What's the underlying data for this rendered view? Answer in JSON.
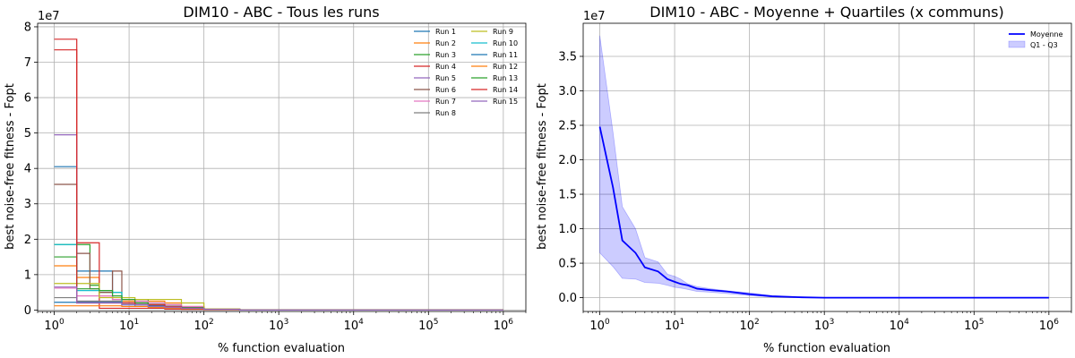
{
  "chart_data": [
    {
      "type": "line",
      "title": "DIM10 - ABC - Tous les runs",
      "xlabel": "% function evaluation",
      "ylabel": "best noise-free fitness - Fopt",
      "y_multiplier": "1e7",
      "xscale": "log",
      "xlim": [
        0.6,
        2000000
      ],
      "ylim": [
        -400000,
        81000000
      ],
      "xticks": [
        {
          "v": 1,
          "b": "10",
          "e": "0"
        },
        {
          "v": 10,
          "b": "10",
          "e": "1"
        },
        {
          "v": 100,
          "b": "10",
          "e": "2"
        },
        {
          "v": 1000,
          "b": "10",
          "e": "3"
        },
        {
          "v": 10000,
          "b": "10",
          "e": "4"
        },
        {
          "v": 100000,
          "b": "10",
          "e": "5"
        },
        {
          "v": 1000000,
          "b": "10",
          "e": "6"
        }
      ],
      "yticks": [
        {
          "v": 0,
          "l": "0"
        },
        {
          "v": 10000000,
          "l": "1"
        },
        {
          "v": 20000000,
          "l": "2"
        },
        {
          "v": 30000000,
          "l": "3"
        },
        {
          "v": 40000000,
          "l": "4"
        },
        {
          "v": 50000000,
          "l": "5"
        },
        {
          "v": 60000000,
          "l": "6"
        },
        {
          "v": 70000000,
          "l": "7"
        },
        {
          "v": 80000000,
          "l": "8"
        }
      ],
      "grid": true,
      "legend": "top-right",
      "x": [
        1,
        2,
        3,
        4,
        6,
        8,
        12,
        18,
        30,
        50,
        100,
        300,
        1000,
        10000,
        100000,
        1000000
      ],
      "series": [
        {
          "name": "Run 1",
          "color": "#1f77b4",
          "values": [
            40500000,
            11000000,
            11000000,
            11000000,
            3000000,
            2000000,
            2000000,
            1500000,
            1000000,
            800000,
            300000,
            0,
            0,
            0,
            0,
            0
          ]
        },
        {
          "name": "Run 2",
          "color": "#ff7f0e",
          "values": [
            12500000,
            9200000,
            9200000,
            4000000,
            3000000,
            2500000,
            2500000,
            2500000,
            2000000,
            1000000,
            300000,
            0,
            0,
            0,
            0,
            0
          ]
        },
        {
          "name": "Run 3",
          "color": "#2ca02c",
          "values": [
            18500000,
            18500000,
            7000000,
            5000000,
            5000000,
            3000000,
            3000000,
            2000000,
            1500000,
            800000,
            300000,
            0,
            0,
            0,
            0,
            0
          ]
        },
        {
          "name": "Run 4",
          "color": "#d62728",
          "values": [
            73500000,
            19000000,
            19000000,
            500000,
            500000,
            500000,
            500000,
            500000,
            300000,
            200000,
            100000,
            0,
            0,
            0,
            0,
            0
          ]
        },
        {
          "name": "Run 5",
          "color": "#9467bd",
          "values": [
            49500000,
            2500000,
            2500000,
            2500000,
            2500000,
            2000000,
            1500000,
            1000000,
            800000,
            500000,
            200000,
            0,
            0,
            0,
            0,
            0
          ]
        },
        {
          "name": "Run 6",
          "color": "#8c564b",
          "values": [
            35500000,
            16000000,
            6000000,
            5000000,
            11000000,
            3000000,
            2000000,
            1500000,
            1000000,
            600000,
            200000,
            0,
            0,
            0,
            0,
            0
          ]
        },
        {
          "name": "Run 7",
          "color": "#e377c2",
          "values": [
            6200000,
            4000000,
            4000000,
            4000000,
            3000000,
            3000000,
            2500000,
            2000000,
            1500000,
            1000000,
            300000,
            0,
            0,
            0,
            0,
            0
          ]
        },
        {
          "name": "Run 8",
          "color": "#7f7f7f",
          "values": [
            3500000,
            2500000,
            2500000,
            2500000,
            2500000,
            2000000,
            2000000,
            1500000,
            1000000,
            500000,
            200000,
            0,
            0,
            0,
            0,
            0
          ]
        },
        {
          "name": "Run 9",
          "color": "#bcbd22",
          "values": [
            7500000,
            7500000,
            7500000,
            3500000,
            3500000,
            3500000,
            3000000,
            3000000,
            3000000,
            2000000,
            300000,
            0,
            0,
            0,
            0,
            0
          ]
        },
        {
          "name": "Run 10",
          "color": "#17becf",
          "values": [
            18500000,
            5500000,
            5500000,
            5500000,
            5000000,
            1500000,
            1000000,
            800000,
            600000,
            400000,
            200000,
            0,
            0,
            0,
            0,
            0
          ]
        },
        {
          "name": "Run 11",
          "color": "#1f77b4",
          "values": [
            2200000,
            2200000,
            2200000,
            2200000,
            2200000,
            1500000,
            1500000,
            1200000,
            1000000,
            500000,
            200000,
            0,
            0,
            0,
            0,
            0
          ]
        },
        {
          "name": "Run 12",
          "color": "#ff7f0e",
          "values": [
            1200000,
            1200000,
            1200000,
            1200000,
            1200000,
            1000000,
            1000000,
            800000,
            600000,
            400000,
            100000,
            0,
            0,
            0,
            0,
            0
          ]
        },
        {
          "name": "Run 13",
          "color": "#2ca02c",
          "values": [
            15000000,
            6000000,
            6000000,
            5500000,
            4000000,
            3000000,
            2000000,
            1500000,
            1000000,
            500000,
            200000,
            0,
            0,
            0,
            0,
            0
          ]
        },
        {
          "name": "Run 14",
          "color": "#d62728",
          "values": [
            76500000,
            2000000,
            2000000,
            2000000,
            2000000,
            2000000,
            1500000,
            1500000,
            1000000,
            500000,
            200000,
            0,
            0,
            0,
            0,
            0
          ]
        },
        {
          "name": "Run 15",
          "color": "#9467bd",
          "values": [
            6500000,
            2000000,
            2000000,
            2000000,
            2000000,
            1500000,
            1500000,
            1000000,
            800000,
            500000,
            200000,
            0,
            0,
            0,
            0,
            0
          ]
        }
      ]
    },
    {
      "type": "area",
      "title": "DIM10 - ABC  - Moyenne + Quartiles (x communs)",
      "xlabel": "% function evaluation",
      "ylabel": "best noise-free fitness - Fopt",
      "y_multiplier": "1e7",
      "xscale": "log",
      "xlim": [
        0.6,
        2000000
      ],
      "ylim": [
        -2000000,
        39800000
      ],
      "xticks": [
        {
          "v": 1,
          "b": "10",
          "e": "0"
        },
        {
          "v": 10,
          "b": "10",
          "e": "1"
        },
        {
          "v": 100,
          "b": "10",
          "e": "2"
        },
        {
          "v": 1000,
          "b": "10",
          "e": "3"
        },
        {
          "v": 10000,
          "b": "10",
          "e": "4"
        },
        {
          "v": 100000,
          "b": "10",
          "e": "5"
        },
        {
          "v": 1000000,
          "b": "10",
          "e": "6"
        }
      ],
      "yticks": [
        {
          "v": 0,
          "l": "0.0"
        },
        {
          "v": 5000000,
          "l": "0.5"
        },
        {
          "v": 10000000,
          "l": "1.0"
        },
        {
          "v": 15000000,
          "l": "1.5"
        },
        {
          "v": 20000000,
          "l": "2.0"
        },
        {
          "v": 25000000,
          "l": "2.5"
        },
        {
          "v": 30000000,
          "l": "3.0"
        },
        {
          "v": 35000000,
          "l": "3.5"
        }
      ],
      "grid": true,
      "legend": "top-right",
      "x": [
        1,
        1.5,
        2,
        3,
        4,
        6,
        8,
        10,
        12,
        15,
        20,
        30,
        50,
        100,
        200,
        500,
        1000,
        10000,
        100000,
        1000000
      ],
      "mean": {
        "name": "Moyenne",
        "color": "#0000ff",
        "values": [
          24800000,
          16000000,
          8300000,
          6500000,
          4400000,
          3800000,
          2700000,
          2300000,
          2000000,
          1800000,
          1300000,
          1100000,
          900000,
          500000,
          200000,
          50000,
          0,
          0,
          0,
          0
        ]
      },
      "band": {
        "name": "Q1 - Q3",
        "color": "#0000ff",
        "opacity": 0.2,
        "upper": [
          38000000,
          24000000,
          13200000,
          10000000,
          5800000,
          5200000,
          3400000,
          3100000,
          2700000,
          2000000,
          1600000,
          1300000,
          1000000,
          700000,
          300000,
          100000,
          0,
          0,
          0,
          0
        ],
        "lower": [
          6500000,
          4500000,
          2800000,
          2700000,
          2200000,
          2100000,
          1800000,
          1500000,
          1400000,
          1200000,
          900000,
          800000,
          600000,
          300000,
          100000,
          20000,
          0,
          0,
          0,
          0
        ]
      }
    }
  ]
}
